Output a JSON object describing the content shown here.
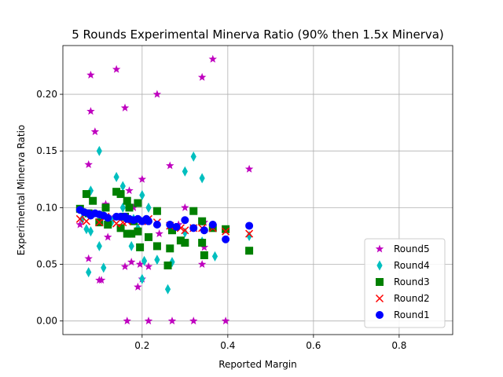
{
  "chart_data": {
    "type": "scatter",
    "title": "5 Rounds Experimental Minerva Ratio (90% then 1.5x Minerva)",
    "xlabel": "Reported Margin",
    "ylabel": "Experimental Minerva Ratio",
    "xlim": [
      0.015,
      0.925
    ],
    "ylim": [
      -0.012,
      0.243
    ],
    "xticks": [
      0.2,
      0.4,
      0.6,
      0.8
    ],
    "xtick_labels": [
      "0.2",
      "0.4",
      "0.6",
      "0.8"
    ],
    "yticks": [
      0.0,
      0.05,
      0.1,
      0.15,
      0.2
    ],
    "ytick_labels": [
      "0.00",
      "0.05",
      "0.10",
      "0.15",
      "0.20"
    ],
    "grid": true,
    "legend_position": "lower-right",
    "series": [
      {
        "name": "Round5",
        "marker": "star",
        "color": "#bf00bf",
        "points": [
          [
            0.08,
            0.217
          ],
          [
            0.14,
            0.222
          ],
          [
            0.08,
            0.185
          ],
          [
            0.16,
            0.188
          ],
          [
            0.235,
            0.2
          ],
          [
            0.365,
            0.231
          ],
          [
            0.34,
            0.215
          ],
          [
            0.075,
            0.138
          ],
          [
            0.09,
            0.167
          ],
          [
            0.45,
            0.134
          ],
          [
            0.265,
            0.137
          ],
          [
            0.2,
            0.125
          ],
          [
            0.055,
            0.085
          ],
          [
            0.075,
            0.055
          ],
          [
            0.1,
            0.036
          ],
          [
            0.105,
            0.036
          ],
          [
            0.12,
            0.074
          ],
          [
            0.115,
            0.103
          ],
          [
            0.17,
            0.115
          ],
          [
            0.16,
            0.048
          ],
          [
            0.175,
            0.052
          ],
          [
            0.19,
            0.03
          ],
          [
            0.195,
            0.05
          ],
          [
            0.2,
            0.037
          ],
          [
            0.215,
            0.048
          ],
          [
            0.24,
            0.077
          ],
          [
            0.3,
            0.1
          ],
          [
            0.34,
            0.05
          ],
          [
            0.345,
            0.065
          ],
          [
            0.165,
            0.0
          ],
          [
            0.215,
            0.0
          ],
          [
            0.27,
            0.0
          ],
          [
            0.32,
            0.0
          ],
          [
            0.395,
            0.0
          ],
          [
            0.285,
            0.085
          ],
          [
            0.345,
            0.087
          ],
          [
            0.18,
            0.1
          ],
          [
            0.13,
            0.09
          ]
        ]
      },
      {
        "name": "Round4",
        "marker": "diamond",
        "color": "#00bfbf",
        "points": [
          [
            0.1,
            0.15
          ],
          [
            0.14,
            0.127
          ],
          [
            0.32,
            0.145
          ],
          [
            0.3,
            0.132
          ],
          [
            0.34,
            0.126
          ],
          [
            0.08,
            0.115
          ],
          [
            0.155,
            0.119
          ],
          [
            0.2,
            0.111
          ],
          [
            0.215,
            0.1
          ],
          [
            0.07,
            0.081
          ],
          [
            0.08,
            0.079
          ],
          [
            0.1,
            0.066
          ],
          [
            0.11,
            0.047
          ],
          [
            0.075,
            0.043
          ],
          [
            0.175,
            0.066
          ],
          [
            0.2,
            0.037
          ],
          [
            0.205,
            0.053
          ],
          [
            0.235,
            0.054
          ],
          [
            0.26,
            0.028
          ],
          [
            0.27,
            0.052
          ],
          [
            0.34,
            0.07
          ],
          [
            0.37,
            0.057
          ],
          [
            0.45,
            0.075
          ],
          [
            0.155,
            0.1
          ],
          [
            0.18,
            0.09
          ],
          [
            0.265,
            0.082
          ],
          [
            0.3,
            0.078
          ],
          [
            0.06,
            0.09
          ],
          [
            0.13,
            0.088
          ],
          [
            0.19,
            0.082
          ]
        ]
      },
      {
        "name": "Round3",
        "marker": "square",
        "color": "#008000",
        "points": [
          [
            0.07,
            0.112
          ],
          [
            0.085,
            0.106
          ],
          [
            0.14,
            0.114
          ],
          [
            0.15,
            0.112
          ],
          [
            0.165,
            0.106
          ],
          [
            0.19,
            0.104
          ],
          [
            0.055,
            0.099
          ],
          [
            0.075,
            0.095
          ],
          [
            0.115,
            0.1
          ],
          [
            0.17,
            0.1
          ],
          [
            0.235,
            0.097
          ],
          [
            0.32,
            0.097
          ],
          [
            0.12,
            0.085
          ],
          [
            0.15,
            0.082
          ],
          [
            0.165,
            0.077
          ],
          [
            0.175,
            0.077
          ],
          [
            0.19,
            0.079
          ],
          [
            0.215,
            0.074
          ],
          [
            0.195,
            0.065
          ],
          [
            0.235,
            0.066
          ],
          [
            0.26,
            0.049
          ],
          [
            0.265,
            0.064
          ],
          [
            0.29,
            0.071
          ],
          [
            0.3,
            0.069
          ],
          [
            0.34,
            0.069
          ],
          [
            0.345,
            0.058
          ],
          [
            0.45,
            0.062
          ],
          [
            0.395,
            0.081
          ],
          [
            0.365,
            0.082
          ],
          [
            0.34,
            0.088
          ],
          [
            0.27,
            0.08
          ],
          [
            0.18,
            0.088
          ],
          [
            0.1,
            0.087
          ],
          [
            0.16,
            0.092
          ]
        ]
      },
      {
        "name": "Round2",
        "marker": "x",
        "color": "#ff0000",
        "points": [
          [
            0.055,
            0.09
          ],
          [
            0.07,
            0.088
          ],
          [
            0.085,
            0.095
          ],
          [
            0.1,
            0.087
          ],
          [
            0.115,
            0.092
          ],
          [
            0.14,
            0.086
          ],
          [
            0.155,
            0.087
          ],
          [
            0.165,
            0.088
          ],
          [
            0.18,
            0.09
          ],
          [
            0.2,
            0.088
          ],
          [
            0.215,
            0.09
          ],
          [
            0.235,
            0.087
          ],
          [
            0.265,
            0.084
          ],
          [
            0.29,
            0.082
          ],
          [
            0.3,
            0.08
          ],
          [
            0.32,
            0.082
          ],
          [
            0.34,
            0.082
          ],
          [
            0.365,
            0.082
          ],
          [
            0.395,
            0.079
          ],
          [
            0.45,
            0.077
          ]
        ]
      },
      {
        "name": "Round1",
        "marker": "circle",
        "color": "#0000ff",
        "points": [
          [
            0.055,
            0.098
          ],
          [
            0.065,
            0.096
          ],
          [
            0.075,
            0.095
          ],
          [
            0.08,
            0.093
          ],
          [
            0.09,
            0.095
          ],
          [
            0.1,
            0.094
          ],
          [
            0.11,
            0.093
          ],
          [
            0.12,
            0.091
          ],
          [
            0.14,
            0.092
          ],
          [
            0.15,
            0.092
          ],
          [
            0.16,
            0.092
          ],
          [
            0.165,
            0.09
          ],
          [
            0.17,
            0.09
          ],
          [
            0.18,
            0.089
          ],
          [
            0.19,
            0.09
          ],
          [
            0.2,
            0.088
          ],
          [
            0.21,
            0.09
          ],
          [
            0.215,
            0.088
          ],
          [
            0.235,
            0.085
          ],
          [
            0.265,
            0.085
          ],
          [
            0.28,
            0.083
          ],
          [
            0.3,
            0.089
          ],
          [
            0.32,
            0.082
          ],
          [
            0.345,
            0.08
          ],
          [
            0.365,
            0.085
          ],
          [
            0.395,
            0.072
          ],
          [
            0.45,
            0.084
          ]
        ]
      }
    ]
  }
}
